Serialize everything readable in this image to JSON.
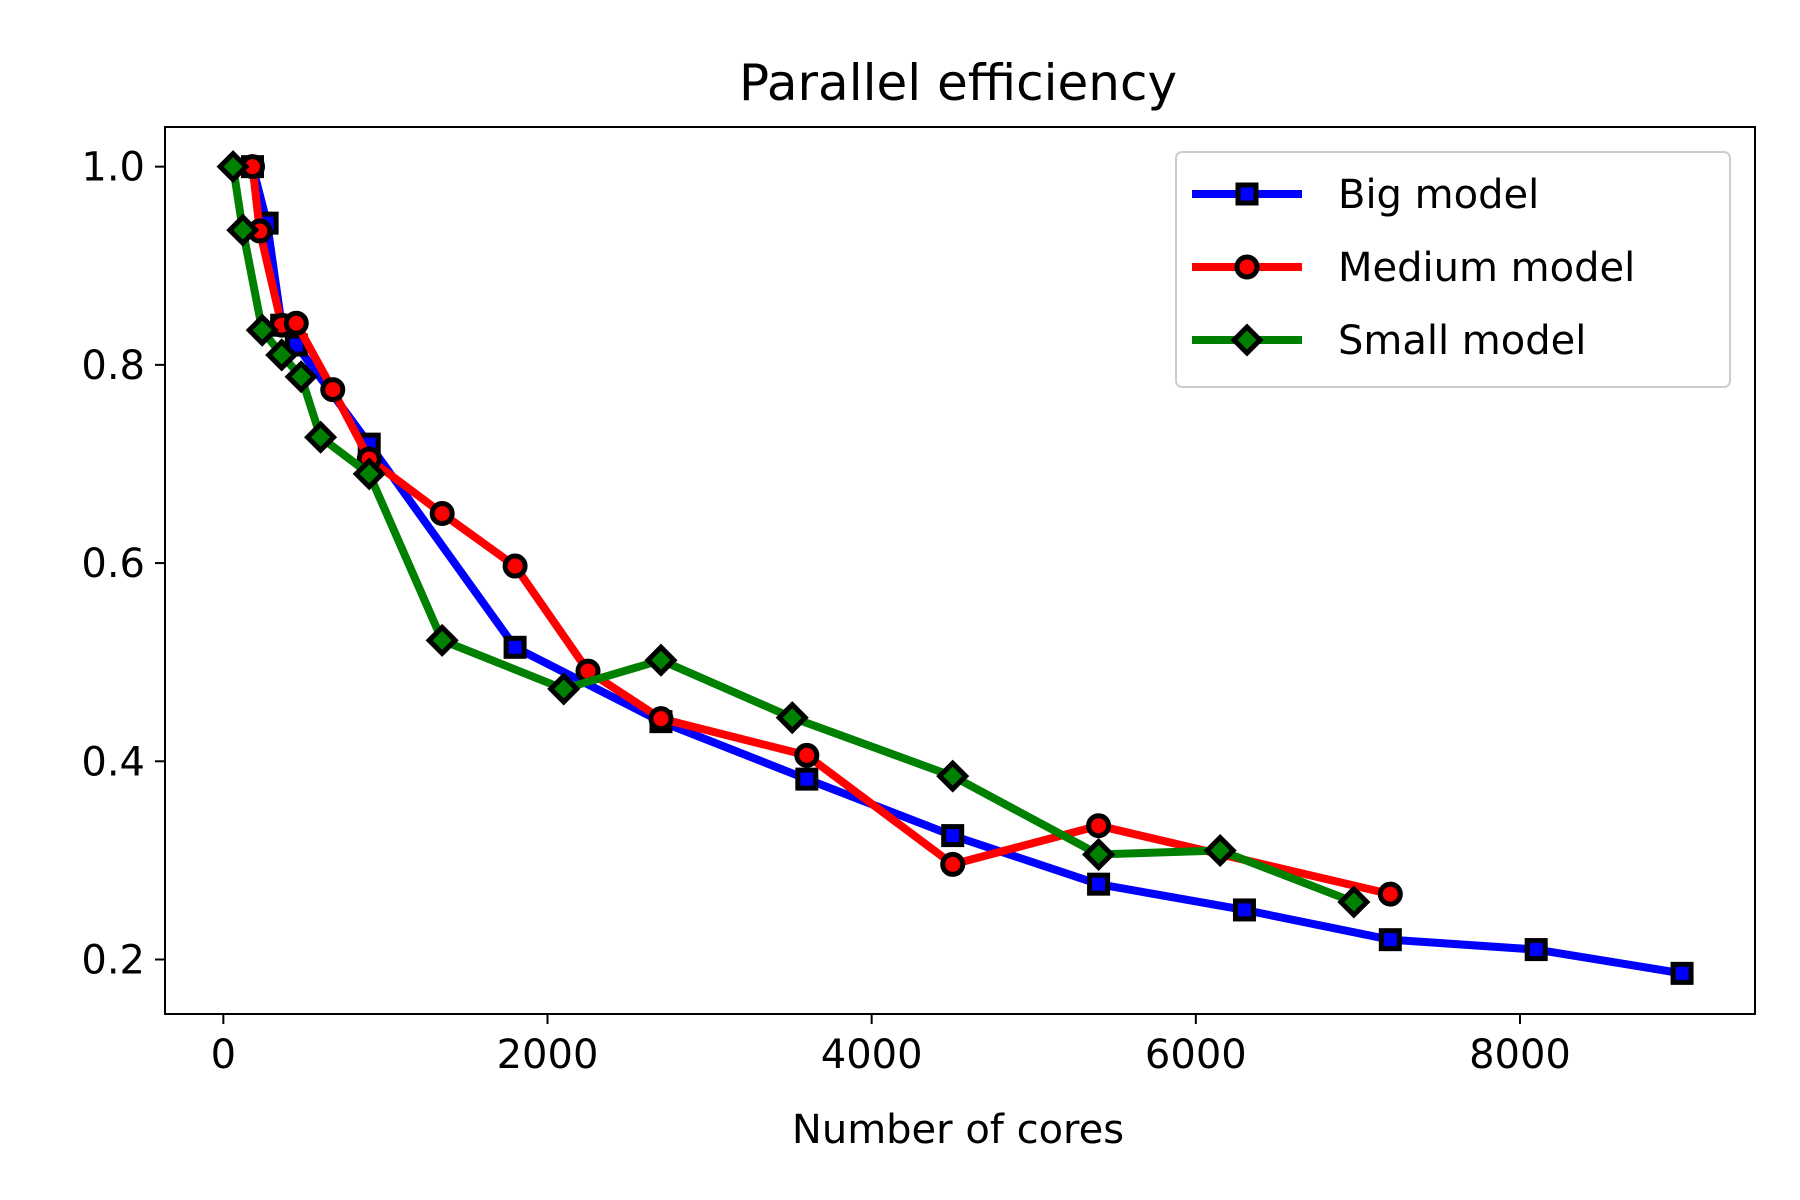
{
  "chart_data": {
    "type": "line",
    "title": "Parallel efficiency",
    "xlabel": "Number of cores",
    "ylabel": "",
    "xlim": [
      -360,
      9450
    ],
    "ylim": [
      0.145,
      1.04
    ],
    "xticks": [
      0,
      2000,
      4000,
      6000,
      8000
    ],
    "xtick_labels": [
      "0",
      "2000",
      "4000",
      "6000",
      "8000"
    ],
    "yticks": [
      0.2,
      0.4,
      0.6,
      0.8,
      1.0
    ],
    "ytick_labels": [
      "0.2",
      "0.4",
      "0.6",
      "0.8",
      "1.0"
    ],
    "grid": false,
    "legend_position": "top-right",
    "series": [
      {
        "name": "Big model",
        "color": "#0000ff",
        "marker": "square",
        "x": [
          180,
          270,
          360,
          450,
          900,
          1800,
          2700,
          3600,
          4500,
          5400,
          6300,
          7200,
          8100,
          9000
        ],
        "y": [
          1.0,
          0.943,
          0.84,
          0.82,
          0.72,
          0.515,
          0.44,
          0.382,
          0.325,
          0.276,
          0.25,
          0.22,
          0.21,
          0.186
        ]
      },
      {
        "name": "Medium model",
        "color": "#ff0000",
        "marker": "circle",
        "x": [
          180,
          225,
          360,
          450,
          675,
          900,
          1350,
          1800,
          2250,
          2700,
          3600,
          4500,
          5400,
          7200
        ],
        "y": [
          1.0,
          0.935,
          0.84,
          0.842,
          0.775,
          0.705,
          0.65,
          0.597,
          0.491,
          0.443,
          0.406,
          0.296,
          0.335,
          0.266
        ]
      },
      {
        "name": "Small model",
        "color": "#008000",
        "marker": "diamond",
        "x": [
          60,
          120,
          240,
          360,
          480,
          600,
          900,
          1350,
          2100,
          2700,
          3510,
          4500,
          5400,
          6150,
          6975
        ],
        "y": [
          1.0,
          0.936,
          0.835,
          0.81,
          0.788,
          0.727,
          0.69,
          0.522,
          0.473,
          0.502,
          0.444,
          0.385,
          0.306,
          0.31,
          0.258
        ]
      }
    ]
  }
}
